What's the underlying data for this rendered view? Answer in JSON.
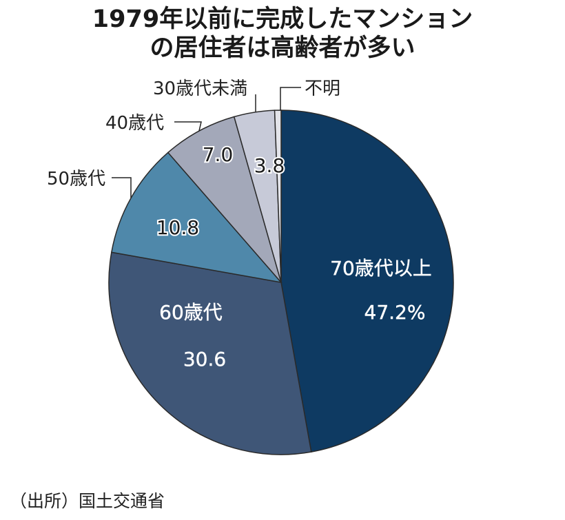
{
  "title_lines": [
    "1979年以前に完成したマンション",
    "の居住者は高齢者が多い"
  ],
  "source": "（出所）国土交通省",
  "chart_data": {
    "type": "pie",
    "title": "1979年以前に完成したマンションの居住者は高齢者が多い",
    "unit": "%",
    "start": "12 o'clock, clockwise",
    "slices": [
      {
        "label": "70歳代以上",
        "value": 47.2,
        "value_text": "47.2%",
        "color": "#0e3a62"
      },
      {
        "label": "60歳代",
        "value": 30.6,
        "value_text": "30.6",
        "color": "#3f5677"
      },
      {
        "label": "50歳代",
        "value": 10.8,
        "value_text": "10.8",
        "color": "#4f88aa"
      },
      {
        "label": "40歳代",
        "value": 7.0,
        "value_text": "7.0",
        "color": "#a3a8b9"
      },
      {
        "label": "30歳代未満",
        "value": 3.8,
        "value_text": "3.8",
        "color": "#c7cad8"
      },
      {
        "label": "不明",
        "value": 0.6,
        "value_text": "",
        "color": "#e3e4ea"
      }
    ]
  }
}
